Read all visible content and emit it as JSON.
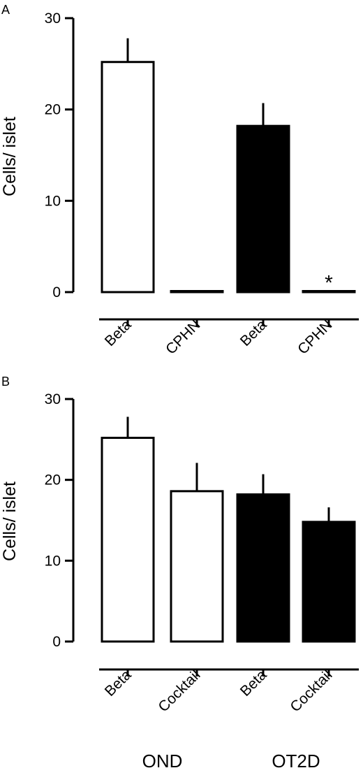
{
  "colors": {
    "ink": "#000000",
    "paper": "#ffffff"
  },
  "chart_data": [
    {
      "panel": "A",
      "type": "bar",
      "ylabel": "Cells/ islet",
      "ylim": [
        0,
        30
      ],
      "yticks": [
        "0",
        "10",
        "20",
        "30"
      ],
      "categories": [
        "Beta",
        "CPHN",
        "Beta",
        "CPHN"
      ],
      "values": [
        25.2,
        0.0,
        18.2,
        0.1
      ],
      "errors": [
        2.6,
        0.0,
        2.5,
        0.0
      ],
      "bar_fills": [
        "#ffffff",
        "#ffffff",
        "#000000",
        "#000000"
      ],
      "annotations": [
        {
          "category_index": 3,
          "text": "*"
        }
      ],
      "group_labels": []
    },
    {
      "panel": "B",
      "type": "bar",
      "ylabel": "Cells/ islet",
      "ylim": [
        0,
        30
      ],
      "yticks": [
        "0",
        "10",
        "20",
        "30"
      ],
      "categories": [
        "Beta",
        "Cocktail",
        "Beta",
        "Cocktail"
      ],
      "values": [
        25.2,
        18.6,
        18.2,
        14.8
      ],
      "errors": [
        2.6,
        3.5,
        2.5,
        1.8
      ],
      "bar_fills": [
        "#ffffff",
        "#ffffff",
        "#000000",
        "#000000"
      ],
      "annotations": [],
      "group_labels": [
        "OND",
        "OT2D"
      ]
    }
  ]
}
